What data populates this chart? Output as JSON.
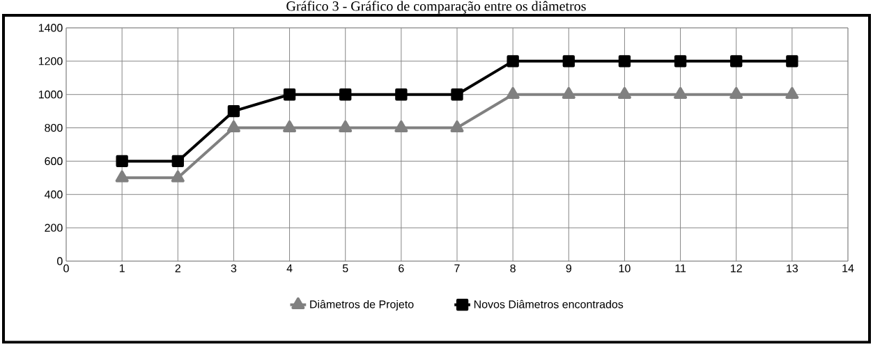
{
  "chart_data": {
    "type": "line",
    "title": "Gráfico 3 - Gráfico de comparação entre os diâmetros",
    "x": [
      1,
      2,
      3,
      4,
      5,
      6,
      7,
      8,
      9,
      10,
      11,
      12,
      13
    ],
    "series": [
      {
        "name": "Diâmetros de Projeto",
        "color": "#808080",
        "marker": "triangle",
        "values": [
          500,
          500,
          800,
          800,
          800,
          800,
          800,
          1000,
          1000,
          1000,
          1000,
          1000,
          1000
        ]
      },
      {
        "name": "Novos Diâmetros encontrados",
        "color": "#000000",
        "marker": "square",
        "values": [
          600,
          600,
          900,
          1000,
          1000,
          1000,
          1000,
          1200,
          1200,
          1200,
          1200,
          1200,
          1200
        ]
      }
    ],
    "xlim": [
      0,
      14
    ],
    "xticks": [
      0,
      1,
      2,
      3,
      4,
      5,
      6,
      7,
      8,
      9,
      10,
      11,
      12,
      13,
      14
    ],
    "ylim": [
      0,
      1400
    ],
    "yticks": [
      0,
      200,
      400,
      600,
      800,
      1000,
      1200,
      1400
    ],
    "grid": true,
    "legend": "bottom",
    "line_style": "solid"
  }
}
